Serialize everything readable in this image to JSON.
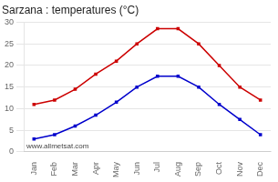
{
  "chart_data": {
    "type": "line",
    "title": "Sarzana : temperatures (°C)",
    "categories": [
      "Jan",
      "Feb",
      "Mar",
      "Apr",
      "May",
      "Jun",
      "Jul",
      "Aug",
      "Sep",
      "Oct",
      "Nov",
      "Dec"
    ],
    "series": [
      {
        "color": "#cc0000",
        "marker": "square",
        "values": [
          11,
          12,
          14.5,
          18,
          21,
          25,
          28.5,
          28.5,
          25,
          20,
          15,
          12
        ]
      },
      {
        "color": "#0000cc",
        "marker": "square",
        "values": [
          3,
          4,
          6,
          8.5,
          11.5,
          15,
          17.5,
          17.5,
          15,
          11,
          7.5,
          4
        ]
      }
    ],
    "ylim": [
      0,
      30
    ],
    "yticks": [
      0,
      5,
      10,
      15,
      20,
      25,
      30
    ],
    "grid": true,
    "annotations": [
      "www.allmetsat.com"
    ]
  }
}
